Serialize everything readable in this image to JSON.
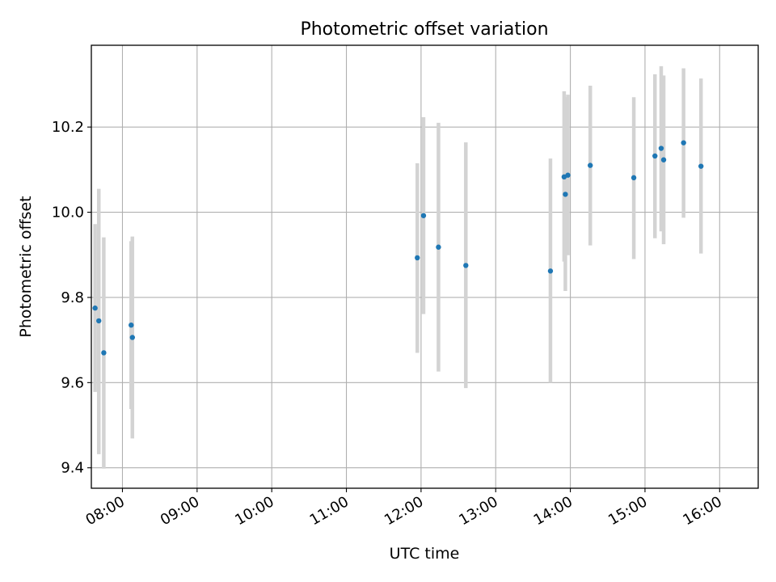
{
  "chart_data": {
    "type": "scatter",
    "title": "Photometric offset variation",
    "xlabel": "UTC time",
    "ylabel": "Photometric offset",
    "x_tick_labels": [
      "08:00",
      "09:00",
      "10:00",
      "11:00",
      "12:00",
      "13:00",
      "14:00",
      "15:00",
      "16:00"
    ],
    "x_ticks": [
      "08:00",
      "09:00",
      "10:00",
      "11:00",
      "12:00",
      "13:00",
      "14:00",
      "15:00",
      "16:00"
    ],
    "y_tick_labels": [
      "9.4",
      "9.6",
      "9.8",
      "10.0",
      "10.2"
    ],
    "y_ticks": [
      9.4,
      9.6,
      9.8,
      10.0,
      10.2
    ],
    "xlim": [
      "07:35",
      "16:31"
    ],
    "ylim": [
      9.352,
      10.392
    ],
    "grid": true,
    "colors": {
      "point": "#1f77b4",
      "errorbar": "#d3d3d3",
      "grid": "#b0b0b0"
    },
    "points": [
      {
        "t": "07:38",
        "y": 9.775,
        "ylo": 9.578,
        "yhi": 9.972
      },
      {
        "t": "07:41",
        "y": 9.745,
        "ylo": 9.432,
        "yhi": 10.055
      },
      {
        "t": "07:45",
        "y": 9.67,
        "ylo": 9.398,
        "yhi": 9.941
      },
      {
        "t": "08:07",
        "y": 9.735,
        "ylo": 9.538,
        "yhi": 9.932
      },
      {
        "t": "08:08",
        "y": 9.706,
        "ylo": 9.469,
        "yhi": 9.943
      },
      {
        "t": "11:57",
        "y": 9.893,
        "ylo": 9.67,
        "yhi": 10.115
      },
      {
        "t": "12:02",
        "y": 9.992,
        "ylo": 9.761,
        "yhi": 10.223
      },
      {
        "t": "12:14",
        "y": 9.918,
        "ylo": 9.626,
        "yhi": 10.21
      },
      {
        "t": "12:36",
        "y": 9.875,
        "ylo": 9.587,
        "yhi": 10.164
      },
      {
        "t": "13:44",
        "y": 9.862,
        "ylo": 9.6,
        "yhi": 10.126
      },
      {
        "t": "13:55",
        "y": 10.083,
        "ylo": 9.884,
        "yhi": 10.284
      },
      {
        "t": "13:56",
        "y": 10.042,
        "ylo": 9.815,
        "yhi": 10.27
      },
      {
        "t": "13:58",
        "y": 10.087,
        "ylo": 9.899,
        "yhi": 10.276
      },
      {
        "t": "14:16",
        "y": 10.11,
        "ylo": 9.922,
        "yhi": 10.297
      },
      {
        "t": "14:51",
        "y": 10.081,
        "ylo": 9.89,
        "yhi": 10.27
      },
      {
        "t": "15:08",
        "y": 10.132,
        "ylo": 9.939,
        "yhi": 10.324
      },
      {
        "t": "15:13",
        "y": 10.15,
        "ylo": 9.955,
        "yhi": 10.343
      },
      {
        "t": "15:15",
        "y": 10.123,
        "ylo": 9.925,
        "yhi": 10.321
      },
      {
        "t": "15:31",
        "y": 10.163,
        "ylo": 9.987,
        "yhi": 10.338
      },
      {
        "t": "15:45",
        "y": 10.108,
        "ylo": 9.903,
        "yhi": 10.314
      }
    ]
  }
}
